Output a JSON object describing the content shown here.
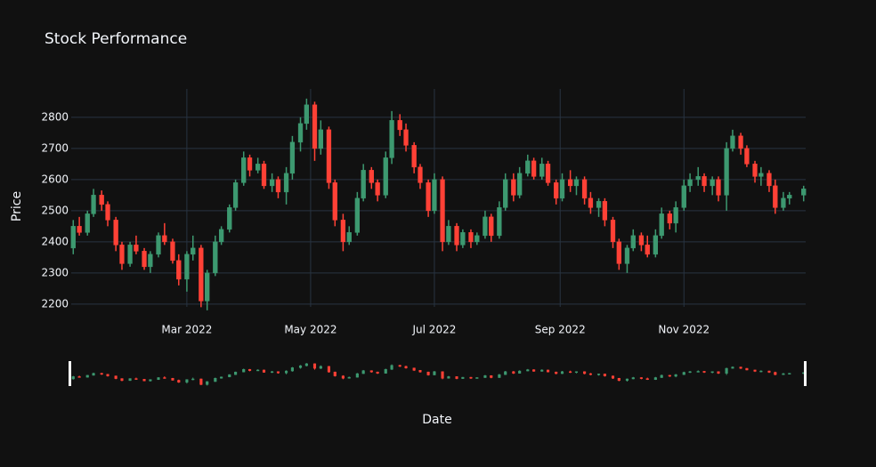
{
  "chart_data": {
    "type": "candlestick",
    "title": "Stock Performance",
    "x_label": "Date",
    "y_label": "Price",
    "increasing_color": "#3d9970",
    "decreasing_color": "#ff4136",
    "grid": true,
    "rangeslider": true,
    "xlim": [
      "2022-01-03",
      "2022-12-31"
    ],
    "xticks": [
      {
        "value": "2022-03-01",
        "label": "Mar 2022"
      },
      {
        "value": "2022-05-01",
        "label": "May 2022"
      },
      {
        "value": "2022-07-01",
        "label": "Jul 2022"
      },
      {
        "value": "2022-09-01",
        "label": "Sep 2022"
      },
      {
        "value": "2022-11-01",
        "label": "Nov 2022"
      }
    ],
    "ylim": [
      2191,
      2891
    ],
    "yticks": [
      2200,
      2300,
      2400,
      2500,
      2600,
      2700,
      2800
    ],
    "x": [
      "2022-01-04",
      "2022-01-07",
      "2022-01-11",
      "2022-01-14",
      "2022-01-18",
      "2022-01-21",
      "2022-01-25",
      "2022-01-28",
      "2022-02-01",
      "2022-02-04",
      "2022-02-08",
      "2022-02-11",
      "2022-02-15",
      "2022-02-18",
      "2022-02-22",
      "2022-02-25",
      "2022-03-01",
      "2022-03-04",
      "2022-03-08",
      "2022-03-11",
      "2022-03-15",
      "2022-03-18",
      "2022-03-22",
      "2022-03-25",
      "2022-03-29",
      "2022-04-01",
      "2022-04-05",
      "2022-04-08",
      "2022-04-12",
      "2022-04-15",
      "2022-04-19",
      "2022-04-22",
      "2022-04-26",
      "2022-04-29",
      "2022-05-03",
      "2022-05-06",
      "2022-05-10",
      "2022-05-13",
      "2022-05-17",
      "2022-05-20",
      "2022-05-24",
      "2022-05-27",
      "2022-05-31",
      "2022-06-03",
      "2022-06-07",
      "2022-06-10",
      "2022-06-14",
      "2022-06-17",
      "2022-06-21",
      "2022-06-24",
      "2022-06-28",
      "2022-07-01",
      "2022-07-05",
      "2022-07-08",
      "2022-07-12",
      "2022-07-15",
      "2022-07-19",
      "2022-07-22",
      "2022-07-26",
      "2022-07-29",
      "2022-08-02",
      "2022-08-05",
      "2022-08-09",
      "2022-08-12",
      "2022-08-16",
      "2022-08-19",
      "2022-08-23",
      "2022-08-26",
      "2022-08-30",
      "2022-09-02",
      "2022-09-06",
      "2022-09-09",
      "2022-09-13",
      "2022-09-16",
      "2022-09-20",
      "2022-09-23",
      "2022-09-27",
      "2022-09-30",
      "2022-10-04",
      "2022-10-07",
      "2022-10-11",
      "2022-10-14",
      "2022-10-18",
      "2022-10-21",
      "2022-10-25",
      "2022-10-28",
      "2022-11-01",
      "2022-11-04",
      "2022-11-08",
      "2022-11-11",
      "2022-11-15",
      "2022-11-18",
      "2022-11-22",
      "2022-11-25",
      "2022-11-29",
      "2022-12-02",
      "2022-12-06",
      "2022-12-09",
      "2022-12-13",
      "2022-12-16",
      "2022-12-20",
      "2022-12-23",
      "2022-12-30"
    ],
    "open": [
      2380,
      2450,
      2430,
      2490,
      2550,
      2520,
      2470,
      2390,
      2330,
      2390,
      2370,
      2320,
      2360,
      2420,
      2400,
      2340,
      2280,
      2360,
      2380,
      2210,
      2300,
      2400,
      2440,
      2510,
      2590,
      2670,
      2630,
      2650,
      2580,
      2600,
      2560,
      2620,
      2720,
      2780,
      2840,
      2700,
      2760,
      2590,
      2470,
      2400,
      2430,
      2540,
      2630,
      2590,
      2550,
      2670,
      2790,
      2760,
      2710,
      2640,
      2590,
      2500,
      2600,
      2400,
      2450,
      2390,
      2430,
      2400,
      2420,
      2480,
      2420,
      2510,
      2600,
      2550,
      2620,
      2660,
      2610,
      2650,
      2590,
      2540,
      2600,
      2580,
      2600,
      2540,
      2510,
      2530,
      2470,
      2400,
      2330,
      2380,
      2420,
      2390,
      2360,
      2420,
      2490,
      2460,
      2510,
      2580,
      2600,
      2610,
      2580,
      2600,
      2550,
      2700,
      2740,
      2700,
      2650,
      2610,
      2620,
      2580,
      2510,
      2540,
      2550
    ],
    "high": [
      2470,
      2480,
      2500,
      2570,
      2565,
      2530,
      2480,
      2400,
      2400,
      2420,
      2380,
      2370,
      2430,
      2460,
      2410,
      2360,
      2370,
      2420,
      2390,
      2310,
      2420,
      2450,
      2520,
      2600,
      2690,
      2680,
      2670,
      2660,
      2620,
      2610,
      2640,
      2740,
      2800,
      2860,
      2850,
      2790,
      2770,
      2600,
      2490,
      2450,
      2560,
      2650,
      2640,
      2600,
      2690,
      2820,
      2810,
      2780,
      2720,
      2650,
      2600,
      2620,
      2610,
      2470,
      2460,
      2440,
      2440,
      2430,
      2500,
      2490,
      2530,
      2620,
      2620,
      2640,
      2680,
      2670,
      2670,
      2660,
      2600,
      2620,
      2630,
      2610,
      2610,
      2560,
      2540,
      2540,
      2480,
      2410,
      2390,
      2440,
      2430,
      2420,
      2440,
      2510,
      2500,
      2530,
      2600,
      2620,
      2640,
      2620,
      2610,
      2610,
      2720,
      2760,
      2750,
      2710,
      2660,
      2640,
      2630,
      2600,
      2560,
      2560,
      2580
    ],
    "low": [
      2360,
      2420,
      2420,
      2480,
      2500,
      2450,
      2370,
      2310,
      2320,
      2360,
      2310,
      2300,
      2350,
      2390,
      2330,
      2260,
      2240,
      2340,
      2190,
      2180,
      2290,
      2390,
      2430,
      2500,
      2580,
      2610,
      2620,
      2570,
      2560,
      2540,
      2520,
      2600,
      2690,
      2760,
      2660,
      2680,
      2570,
      2450,
      2370,
      2390,
      2420,
      2530,
      2570,
      2530,
      2540,
      2650,
      2740,
      2690,
      2620,
      2570,
      2480,
      2490,
      2370,
      2390,
      2370,
      2380,
      2380,
      2390,
      2410,
      2400,
      2410,
      2500,
      2530,
      2540,
      2610,
      2600,
      2600,
      2580,
      2520,
      2530,
      2560,
      2550,
      2520,
      2490,
      2480,
      2450,
      2380,
      2310,
      2300,
      2370,
      2370,
      2350,
      2350,
      2410,
      2440,
      2430,
      2500,
      2560,
      2580,
      2560,
      2550,
      2530,
      2500,
      2690,
      2680,
      2640,
      2590,
      2580,
      2560,
      2490,
      2500,
      2520,
      2530
    ],
    "close": [
      2450,
      2430,
      2490,
      2550,
      2520,
      2470,
      2390,
      2330,
      2390,
      2370,
      2320,
      2360,
      2420,
      2400,
      2340,
      2280,
      2360,
      2380,
      2210,
      2300,
      2400,
      2440,
      2510,
      2590,
      2670,
      2630,
      2650,
      2580,
      2600,
      2560,
      2620,
      2720,
      2780,
      2840,
      2700,
      2760,
      2590,
      2470,
      2400,
      2430,
      2540,
      2630,
      2590,
      2550,
      2670,
      2790,
      2760,
      2710,
      2640,
      2590,
      2500,
      2600,
      2400,
      2450,
      2390,
      2430,
      2400,
      2420,
      2480,
      2420,
      2510,
      2600,
      2550,
      2620,
      2660,
      2610,
      2650,
      2590,
      2540,
      2600,
      2580,
      2600,
      2540,
      2510,
      2530,
      2470,
      2400,
      2330,
      2380,
      2420,
      2390,
      2360,
      2420,
      2490,
      2460,
      2510,
      2580,
      2600,
      2610,
      2580,
      2600,
      2550,
      2700,
      2740,
      2700,
      2650,
      2610,
      2620,
      2580,
      2510,
      2540,
      2550,
      2570
    ]
  }
}
